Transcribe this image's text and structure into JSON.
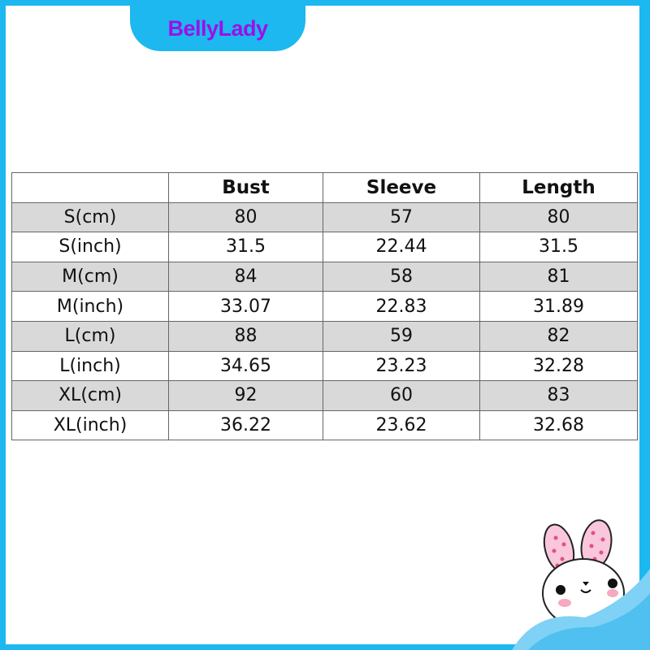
{
  "brand": "BellyLady",
  "colors": {
    "frame": "#1cb8ef",
    "brand_text": "#9b10e8",
    "row_shade": "#d9d9d9"
  },
  "size_table": {
    "headers": [
      "",
      "Bust",
      "Sleeve",
      "Length"
    ],
    "rows": [
      [
        "S(cm)",
        "80",
        "57",
        "80"
      ],
      [
        "S(inch)",
        "31.5",
        "22.44",
        "31.5"
      ],
      [
        "M(cm)",
        "84",
        "58",
        "81"
      ],
      [
        "M(inch)",
        "33.07",
        "22.83",
        "31.89"
      ],
      [
        "L(cm)",
        "88",
        "59",
        "82"
      ],
      [
        "L(inch)",
        "34.65",
        "23.23",
        "32.28"
      ],
      [
        "XL(cm)",
        "92",
        "60",
        "83"
      ],
      [
        "XL(inch)",
        "36.22",
        "23.62",
        "32.68"
      ]
    ]
  },
  "decoration": "bunny-icon"
}
